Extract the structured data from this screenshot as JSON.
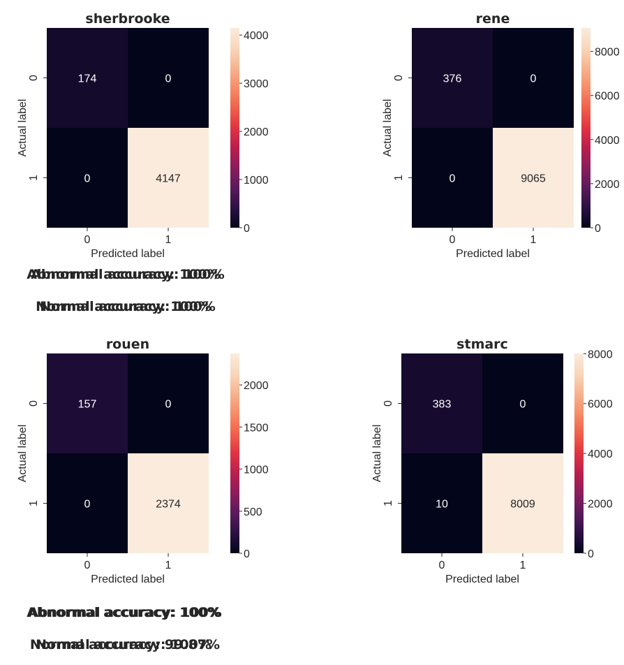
{
  "chart_data": [
    {
      "type": "heatmap",
      "title": "sherbrooke",
      "xlabel": "Predicted label",
      "ylabel": "Actual label",
      "x_tick_labels": [
        "0",
        "1"
      ],
      "y_tick_labels": [
        "0",
        "1"
      ],
      "matrix": [
        [
          174,
          0
        ],
        [
          0,
          4147
        ]
      ],
      "colorbar": {
        "min": 0,
        "max": 4147,
        "ticks": [
          0,
          1000,
          2000,
          3000,
          4000
        ]
      },
      "annotations": [
        "Abnormal accuracy: 100%",
        "Normal accuracy: 100%"
      ]
    },
    {
      "type": "heatmap",
      "title": "rene",
      "xlabel": "Predicted label",
      "ylabel": "Actual label",
      "x_tick_labels": [
        "0",
        "1"
      ],
      "y_tick_labels": [
        "0",
        "1"
      ],
      "matrix": [
        [
          376,
          0
        ],
        [
          0,
          9065
        ]
      ],
      "colorbar": {
        "min": 0,
        "max": 9065,
        "ticks": [
          0,
          2000,
          4000,
          6000,
          8000
        ]
      },
      "annotations": [
        "Abnormal accuracy: 100%",
        "Normal accuracy: 100%"
      ]
    },
    {
      "type": "heatmap",
      "title": "rouen",
      "xlabel": "Predicted label",
      "ylabel": "Actual label",
      "x_tick_labels": [
        "0",
        "1"
      ],
      "y_tick_labels": [
        "0",
        "1"
      ],
      "matrix": [
        [
          157,
          0
        ],
        [
          0,
          2374
        ]
      ],
      "colorbar": {
        "min": 0,
        "max": 2374,
        "ticks": [
          0,
          500,
          1000,
          1500,
          2000
        ]
      },
      "annotations": [
        "Abnormal accuracy: 100%",
        "Normal accuracy: 100%"
      ]
    },
    {
      "type": "heatmap",
      "title": "stmarc",
      "xlabel": "Predicted label",
      "ylabel": "Actual label",
      "x_tick_labels": [
        "0",
        "1"
      ],
      "y_tick_labels": [
        "0",
        "1"
      ],
      "matrix": [
        [
          383,
          0
        ],
        [
          10,
          8009
        ]
      ],
      "colorbar": {
        "min": 0,
        "max": 8009,
        "ticks": [
          0,
          2000,
          4000,
          6000,
          8000
        ]
      },
      "annotations": [
        "Abnormal accuracy: 100%",
        "Normal accuracy: 99.87%"
      ]
    }
  ],
  "colormap": {
    "name": "rocket",
    "stops": [
      "#03051a",
      "#2b1144",
      "#5a1a5b",
      "#8a1d5c",
      "#b91f4e",
      "#e13342",
      "#f0614c",
      "#f68d68",
      "#f6b48f",
      "#f8d7bc",
      "#faebdd"
    ]
  }
}
